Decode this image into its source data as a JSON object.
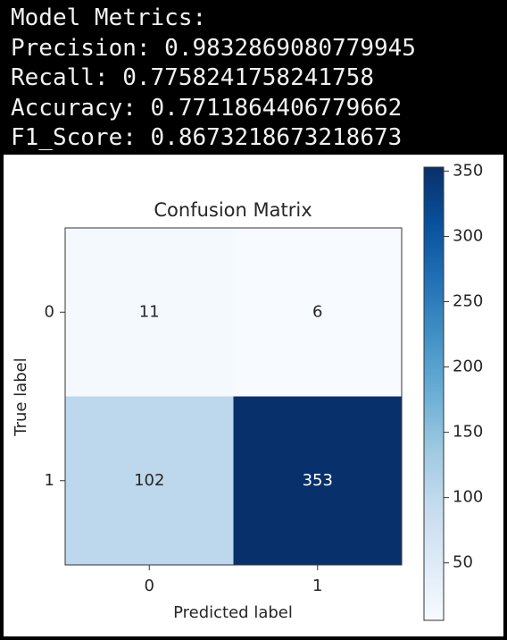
{
  "console": {
    "lines": [
      "Model Metrics:",
      "Precision: 0.9832869080779945",
      "Recall: 0.7758241758241758",
      "Accuracy: 0.7711864406779662",
      "F1_Score: 0.8673218673218673"
    ]
  },
  "chart_data": {
    "type": "heatmap",
    "title": "Confusion Matrix",
    "x_label": "Predicted label",
    "y_label": "True label",
    "x_categories": [
      "0",
      "1"
    ],
    "y_categories": [
      "0",
      "1"
    ],
    "values": [
      [
        11,
        6
      ],
      [
        102,
        353
      ]
    ],
    "colors": [
      "#f7fbff",
      "#deebf7",
      "#c6dbef",
      "#9ecae1",
      "#6baed6",
      "#4292c6",
      "#2171b5",
      "#08519c",
      "#08306b"
    ],
    "clim": [
      6,
      353
    ],
    "cticks": [
      50,
      100,
      150,
      200,
      250,
      300,
      350
    ]
  }
}
